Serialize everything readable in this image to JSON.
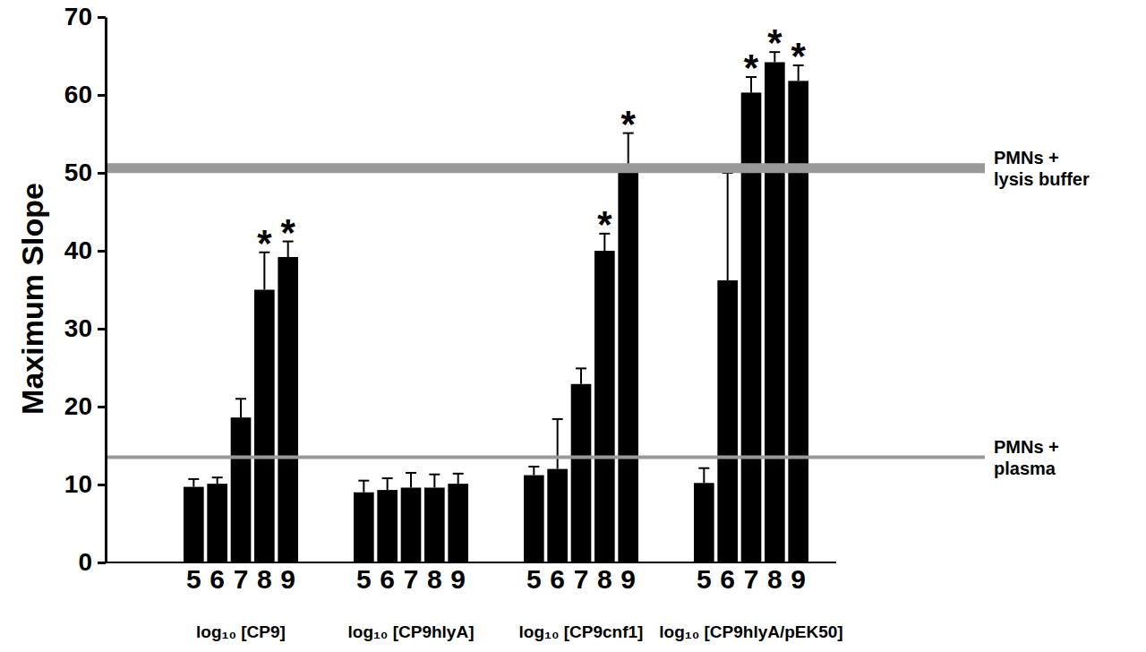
{
  "chart_data": {
    "type": "bar",
    "y_label": "Maximum Slope",
    "categories": [
      "5",
      "6",
      "7",
      "8",
      "9"
    ],
    "color": "#000000",
    "ylim": [
      0,
      70
    ],
    "yticks": [
      0,
      10,
      20,
      30,
      40,
      50,
      60,
      70
    ],
    "grid": false,
    "series": [
      {
        "name": "log₁₀ [CP9]",
        "values": [
          9.7,
          10.1,
          18.6,
          35.0,
          39.2
        ],
        "errors": [
          1.0,
          0.8,
          2.4,
          4.8,
          2.0
        ],
        "significance": [
          null,
          null,
          null,
          "*",
          "*"
        ]
      },
      {
        "name": "log₁₀ [CP9hlyA]",
        "values": [
          9.0,
          9.3,
          9.6,
          9.6,
          10.1
        ],
        "errors": [
          1.5,
          1.5,
          1.9,
          1.7,
          1.3
        ],
        "significance": [
          null,
          null,
          null,
          null,
          null
        ]
      },
      {
        "name": "log₁₀ [CP9cnf1]",
        "values": [
          11.2,
          12.0,
          22.9,
          40.0,
          50.5
        ],
        "errors": [
          1.1,
          6.4,
          2.0,
          2.2,
          4.6
        ],
        "significance": [
          null,
          null,
          null,
          "*",
          "*"
        ]
      },
      {
        "name": "log₁₀ [CP9hlyA/pEK50]",
        "values": [
          10.2,
          36.2,
          60.3,
          64.2,
          61.8
        ],
        "errors": [
          1.9,
          13.8,
          2.0,
          1.3,
          2.0
        ],
        "significance": [
          null,
          null,
          "*",
          "*",
          "*"
        ]
      }
    ],
    "reference_lines": [
      {
        "label": [
          "PMNs +",
          "lysis buffer"
        ],
        "value": 50.6,
        "color": "#999999"
      },
      {
        "label": [
          "PMNs +",
          "plasma"
        ],
        "value": 13.5,
        "color": "#999999"
      }
    ]
  }
}
